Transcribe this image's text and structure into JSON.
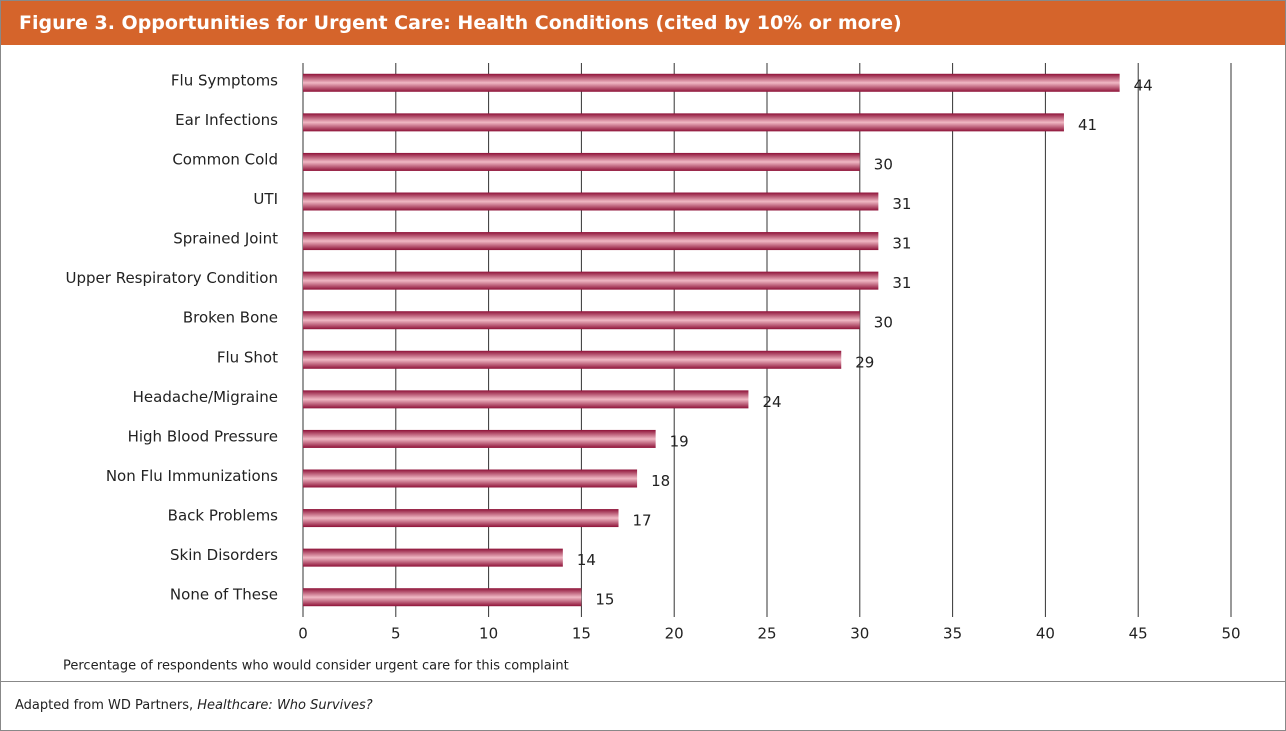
{
  "chart_data": {
    "type": "barh",
    "title": "Figure 3. Opportunities for Urgent Care: Health Conditions (cited by 10% or more)",
    "categories": [
      "Flu Symptoms",
      "Ear Infections",
      "Common Cold",
      "UTI",
      "Sprained Joint",
      "Upper Respiratory Condition",
      "Broken Bone",
      "Flu Shot",
      "Headache/Migraine",
      "High Blood Pressure",
      "Non Flu Immunizations",
      "Back Problems",
      "Skin Disorders",
      "None of These"
    ],
    "values": [
      44,
      41,
      30,
      31,
      31,
      31,
      30,
      29,
      24,
      19,
      18,
      17,
      14,
      15
    ],
    "color": "#8e1238",
    "xlim": [
      0,
      50
    ],
    "xticks": [
      0,
      5,
      10,
      15,
      20,
      25,
      30,
      35,
      40,
      45,
      50
    ],
    "grid": true,
    "x_label": "Percentage of respondents who would consider urgent care for this complaint",
    "source": {
      "text": "Adapted from WD Partners, ",
      "title": "Healthcare: Who Survives?"
    }
  }
}
